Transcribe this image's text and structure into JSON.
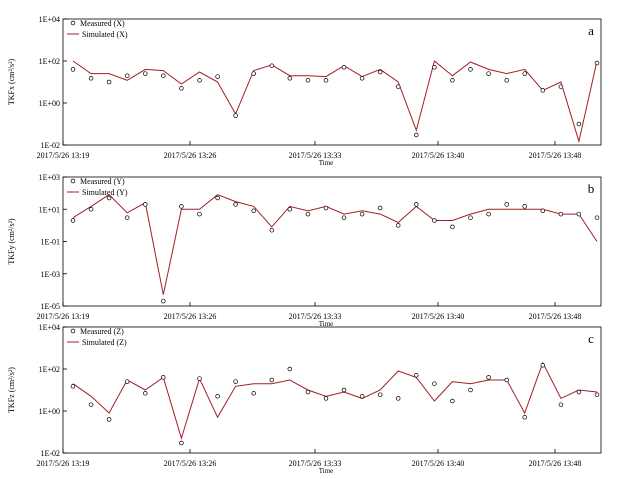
{
  "chart_data": [
    {
      "type": "line",
      "panel_label": "a",
      "ylabel": "TKFx (cm²/s²)",
      "xlabel": "Time",
      "yscale": "log",
      "ylim": [
        0.01,
        10000
      ],
      "ytick_labels": [
        "1E-02",
        "1E+00",
        "1E+02",
        "1E+04"
      ],
      "xtick_labels": [
        "2017/5/26 13:19",
        "2017/5/26 13:26",
        "2017/5/26 13:33",
        "2017/5/26 13:40",
        "2017/5/26 13:48"
      ],
      "legend": {
        "position": "top-left",
        "entries": [
          "Measured (X)",
          "Simulated (X)"
        ]
      },
      "series": [
        {
          "name": "Measured (X)",
          "marker": "open-circle",
          "color": "#000000",
          "values": [
            40,
            15,
            10,
            20,
            25,
            20,
            5,
            12,
            18,
            0.25,
            25,
            60,
            15,
            12,
            12,
            50,
            15,
            30,
            6,
            0.03,
            50,
            12,
            40,
            25,
            12,
            25,
            4,
            6,
            0.1,
            80
          ]
        },
        {
          "name": "Simulated (X)",
          "marker": "none",
          "color": "#a51d23",
          "values": [
            100,
            25,
            25,
            12,
            40,
            35,
            8,
            30,
            10,
            0.3,
            35,
            65,
            20,
            20,
            18,
            60,
            18,
            40,
            10,
            0.05,
            100,
            20,
            90,
            40,
            25,
            40,
            4,
            10,
            0.015,
            100
          ]
        }
      ]
    },
    {
      "type": "line",
      "panel_label": "b",
      "ylabel": "TKFy (cm²/s²)",
      "xlabel": "Time",
      "yscale": "log",
      "ylim": [
        1e-05,
        1000
      ],
      "ytick_labels": [
        "1E-05",
        "1E-03",
        "1E-01",
        "1E+01",
        "1E+03"
      ],
      "xtick_labels": [
        "2017/5/26 13:19",
        "2017/5/26 13:26",
        "2017/5/26 13:33",
        "2017/5/26 13:40",
        "2017/5/26 13:48"
      ],
      "legend": {
        "position": "top-left",
        "entries": [
          "Measured (Y)",
          "Simulated (Y)"
        ]
      },
      "series": [
        {
          "name": "Measured (Y)",
          "marker": "open-circle",
          "color": "#000000",
          "values": [
            2,
            10,
            50,
            3,
            20,
            2e-05,
            15,
            5,
            50,
            20,
            8,
            0.5,
            10,
            5,
            12,
            3,
            5,
            12,
            1,
            20,
            2,
            0.8,
            3,
            5,
            20,
            15,
            8,
            5,
            5,
            3
          ]
        },
        {
          "name": "Simulated (Y)",
          "marker": "none",
          "color": "#a51d23",
          "values": [
            3,
            15,
            80,
            6,
            25,
            5e-05,
            10,
            10,
            80,
            30,
            15,
            0.8,
            15,
            8,
            15,
            5,
            8,
            5,
            1.5,
            15,
            2,
            2,
            5,
            10,
            10,
            10,
            10,
            5,
            5,
            0.1
          ]
        }
      ]
    },
    {
      "type": "line",
      "panel_label": "c",
      "ylabel": "TKFz (cm²/s²)",
      "xlabel": "Time",
      "yscale": "log",
      "ylim": [
        0.01,
        10000
      ],
      "ytick_labels": [
        "1E-02",
        "1E+00",
        "1E+02",
        "1E+04"
      ],
      "xtick_labels": [
        "2017/5/26 13:19",
        "2017/5/26 13:26",
        "2017/5/26 13:33",
        "2017/5/26 13:40",
        "2017/5/26 13:48"
      ],
      "legend": {
        "position": "top-left",
        "entries": [
          "Measured (Z)",
          "Simulated (Z)"
        ]
      },
      "series": [
        {
          "name": "Measured (Z)",
          "marker": "open-circle",
          "color": "#000000",
          "values": [
            15,
            2,
            0.4,
            25,
            7,
            40,
            0.03,
            35,
            5,
            25,
            7,
            30,
            100,
            8,
            4,
            10,
            5,
            6,
            4,
            50,
            20,
            3,
            10,
            40,
            30,
            0.5,
            150,
            2,
            8,
            6
          ]
        },
        {
          "name": "Simulated (Z)",
          "marker": "none",
          "color": "#a51d23",
          "values": [
            20,
            5,
            0.8,
            30,
            10,
            40,
            0.05,
            35,
            0.5,
            15,
            20,
            20,
            30,
            10,
            5,
            8,
            4,
            10,
            80,
            40,
            3,
            25,
            20,
            30,
            30,
            0.8,
            200,
            4,
            10,
            8
          ]
        }
      ]
    }
  ]
}
